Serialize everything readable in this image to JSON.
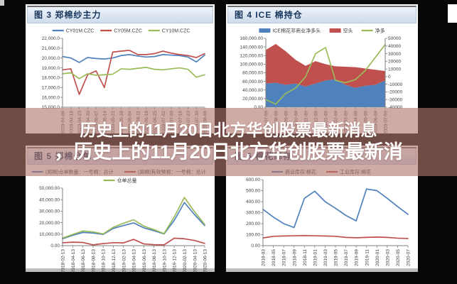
{
  "overlay": {
    "line1": "历史上的11月20日北方华创股票最新消息",
    "line2": "，历史上的11月20日北方华创股票最新消",
    "background": "#b2786e",
    "text_color": "#ffffff"
  },
  "colors": {
    "series_blue": "#4f81bd",
    "series_red": "#c0504d",
    "series_olive": "#9bbb59",
    "header_text": "#17365d",
    "axis_text": "#404040"
  },
  "chart_data": [
    {
      "panel_title": "图 3 郑棉纱主力",
      "type": "line",
      "categories": [
        "2020-04-09",
        "2020-04-16",
        "2020-04-23",
        "2020-04-30",
        "2020-05-07",
        "2020-05-14",
        "2020-05-21",
        "2020-05-28",
        "2020-06-04",
        "2020-06-11",
        "2020-06-18",
        "2020-06-25",
        "2020-07-02",
        "2020-07-09",
        "2020-07-16",
        "2020-07-23",
        "2020-07-30",
        "2020-08-06"
      ],
      "ylim": [
        15000,
        22000
      ],
      "yticks": [
        "15,000.0",
        "16,000.0",
        "17,000.0",
        "18,000.0",
        "19,000.0",
        "20,000.0",
        "21,000.0",
        "22,000.0"
      ],
      "legend_position": "top",
      "grid": false,
      "series": [
        {
          "name": "CY01M.CZC",
          "type": "line",
          "color": "#4f81bd",
          "values": [
            20150,
            20000,
            19550,
            20050,
            19950,
            19900,
            20000,
            20250,
            20350,
            20200,
            20100,
            20150,
            20350,
            20300,
            20250,
            20100,
            19600,
            20300
          ]
        },
        {
          "name": "CY05M.CZC",
          "type": "line",
          "color": "#c0504d",
          "values": [
            18800,
            18900,
            16300,
            18300,
            18700,
            17000,
            20600,
            20700,
            20780,
            20350,
            20350,
            20450,
            20700,
            20500,
            20350,
            20250,
            20050,
            20450
          ]
        },
        {
          "name": "CY10M.CZC",
          "type": "line",
          "color": "#9bbb59",
          "values": [
            18400,
            18500,
            17900,
            18400,
            18250,
            18300,
            18350,
            18900,
            18850,
            18950,
            19050,
            18850,
            18800,
            18900,
            19000,
            18850,
            18050,
            18300
          ]
        }
      ]
    },
    {
      "panel_title": "图 4 ICE 棉持仓",
      "type": "area",
      "categories": [
        "2019-07-09",
        "2019-08-09",
        "2019-09-09",
        "2019-10-09",
        "2019-11-09",
        "2019-12-09",
        "2020-01-09",
        "2020-02-09",
        "2020-03-09",
        "2020-04-09",
        "2020-05-09",
        "2020-06-09",
        "2020-07-09"
      ],
      "ylim": [
        0,
        160000
      ],
      "yticks": [
        "0.00",
        "20,000.00",
        "40,000.00",
        "60,000.00",
        "80,000.00",
        "100,000.00",
        "120,000.00",
        "140,000.00",
        "160,000.00"
      ],
      "y2lim": [
        -40000,
        50000
      ],
      "y2ticks": [
        "-40000",
        "-30000",
        "-20000",
        "-10000",
        "0",
        "10000",
        "20000",
        "30000",
        "40000",
        "50000"
      ],
      "legend_position": "top",
      "grid": false,
      "series": [
        {
          "name": "ICE棉花非商业净多头",
          "type": "area",
          "stack": true,
          "color": "#4f81bd",
          "values": [
            55000,
            57000,
            52000,
            55000,
            48000,
            55000,
            62000,
            65000,
            52000,
            45000,
            50000,
            52000,
            62000
          ]
        },
        {
          "name": "空头",
          "type": "area",
          "stack": true,
          "color": "#c0504d",
          "values": [
            78000,
            90000,
            78000,
            55000,
            48000,
            52000,
            38000,
            30000,
            42000,
            48000,
            40000,
            35000,
            22000
          ]
        },
        {
          "name": "净多",
          "type": "line",
          "axis": "right",
          "color": "#9bbb59",
          "values": [
            -30000,
            -36000,
            -22000,
            -15000,
            0,
            30000,
            38000,
            -5000,
            -8000,
            -4000,
            8000,
            25000,
            42000
          ]
        }
      ]
    },
    {
      "panel_title": "图 5 郑棉仓单",
      "type": "line",
      "categories": [
        "2018-02-13",
        "2018-04-13",
        "2018-06-13",
        "2018-08-13",
        "2018-10-13",
        "2018-12-13",
        "2019-02-13",
        "2019-04-13",
        "2019-06-13",
        "2019-08-13",
        "2019-10-13",
        "2019-12-13",
        "2020-02-13",
        "2020-04-13",
        "2020-06-13"
      ],
      "ylim": [
        0,
        50000
      ],
      "yticks": [
        "0.00",
        "10,000.00",
        "20,000.00",
        "30,000.00",
        "40,000.00",
        "50,000.00"
      ],
      "legend_position": "top",
      "grid": false,
      "series": [
        {
          "name": "(郑棉)仓单数量：一号棉：总计",
          "type": "line",
          "color": "#4f81bd",
          "legend_row": 0,
          "values": [
            6000,
            9000,
            11500,
            11000,
            9800,
            15000,
            17500,
            19800,
            15500,
            13000,
            10200,
            22000,
            37500,
            27000,
            17500
          ]
        },
        {
          "name": "(郑棉)有效预报：一号棉：总计",
          "type": "line",
          "color": "#c0504d",
          "legend_row": 0,
          "values": [
            2500,
            3000,
            2800,
            700,
            1800,
            2600,
            2400,
            5500,
            1500,
            900,
            700,
            6500,
            6000,
            4500,
            2000
          ]
        },
        {
          "name": "仓单总量",
          "type": "line",
          "color": "#9bbb59",
          "legend_row": 1,
          "values": [
            6500,
            9800,
            12800,
            12000,
            10200,
            16000,
            19500,
            22500,
            17000,
            14000,
            10500,
            25000,
            42000,
            29500,
            18500
          ]
        }
      ]
    },
    {
      "panel_title": "图 6 棉花库存",
      "type": "line",
      "categories": [
        "2018-03",
        "2018-05",
        "2018-07",
        "2018-09",
        "2018-11",
        "2019-01",
        "2019-03",
        "2019-05",
        "2019-07",
        "2019-09",
        "2019-11",
        "2020-01",
        "2020-03",
        "2020-05",
        "2020-07"
      ],
      "ylim": [
        0,
        600
      ],
      "yticks": [
        "0.00",
        "100.00",
        "200.00",
        "300.00",
        "400.00",
        "500.00",
        "600.00"
      ],
      "legend_position": "top",
      "grid": false,
      "series": [
        {
          "name": "商业库存:棉花",
          "type": "line",
          "color": "#4f81bd",
          "values": [
            330,
            260,
            200,
            165,
            430,
            495,
            400,
            340,
            275,
            225,
            515,
            500,
            430,
            355,
            285
          ]
        },
        {
          "name": "工业库存:棉花",
          "type": "line",
          "color": "#c0504d",
          "values": [
            70,
            85,
            88,
            90,
            92,
            90,
            88,
            85,
            75,
            72,
            75,
            78,
            75,
            68,
            65
          ]
        }
      ]
    }
  ]
}
